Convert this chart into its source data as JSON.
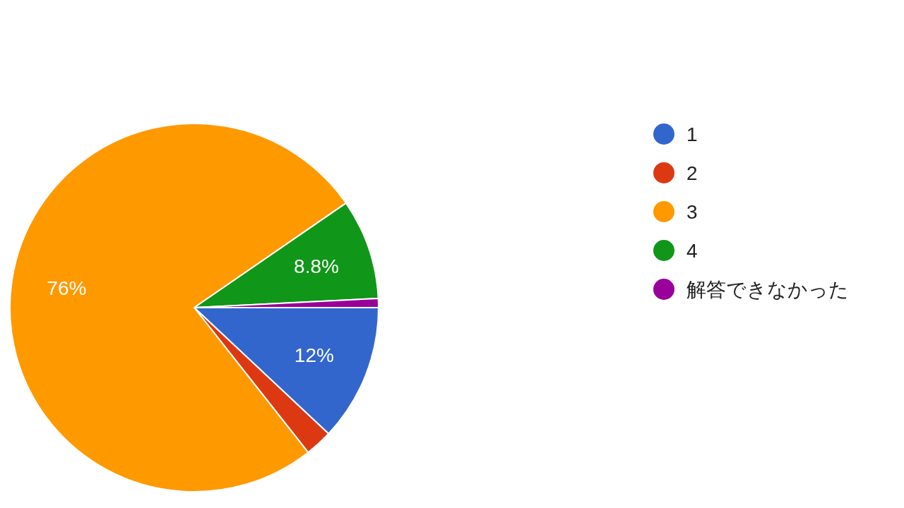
{
  "chart_data": {
    "type": "pie",
    "categories": [
      "1",
      "2",
      "3",
      "4",
      "解答できなかった"
    ],
    "values": [
      12,
      2.4,
      76,
      8.8,
      0.8
    ],
    "colors": [
      "#3366cc",
      "#dc3912",
      "#ff9900",
      "#109618",
      "#990099"
    ],
    "value_labels": [
      "12%",
      null,
      "76%",
      "8.8%",
      null
    ],
    "legend": "right"
  }
}
